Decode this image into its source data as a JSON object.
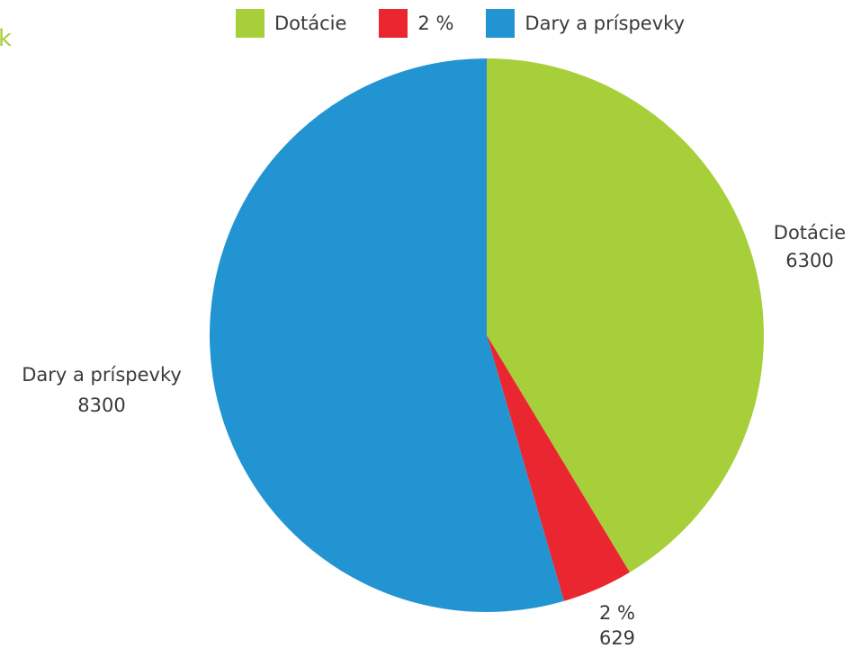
{
  "partial_glyph": "k",
  "chart_data": {
    "type": "pie",
    "slices": [
      {
        "label": "Dotácie",
        "value": 6300,
        "value_label": "6300",
        "color": "#a7cf3a"
      },
      {
        "label": "2 %",
        "value": 629,
        "value_label": "629",
        "color": "#ea2631"
      },
      {
        "label": "Dary a príspevky",
        "value": 8300,
        "value_label": "8300",
        "color": "#2294d2"
      }
    ],
    "legend_position": "top"
  }
}
